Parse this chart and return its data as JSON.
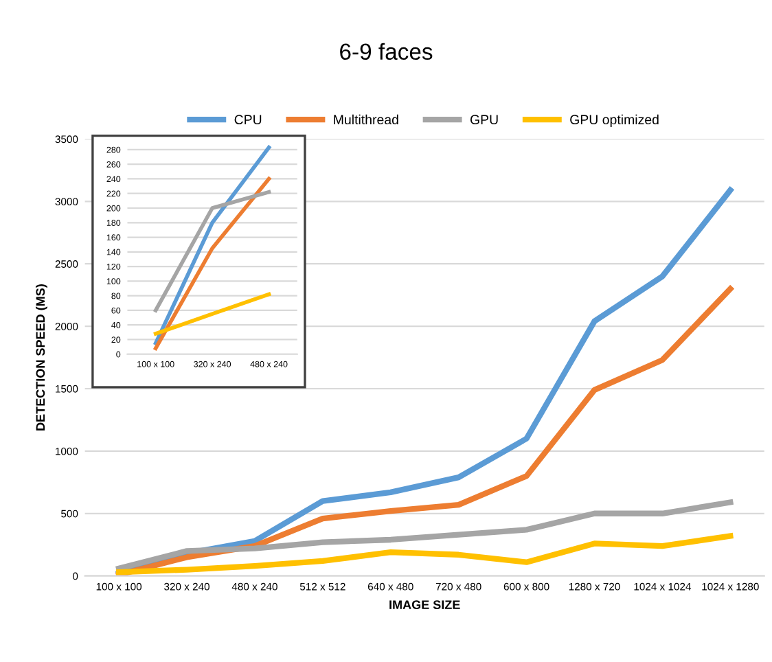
{
  "chart_data": [
    {
      "type": "line",
      "title": "6-9 faces",
      "xlabel": "IMAGE SIZE",
      "ylabel": "DETECTION SPEED (MS)",
      "categories": [
        "100 x 100",
        "320 x 240",
        "480 x 240",
        "512 x 512",
        "640 x 480",
        "720 x 480",
        "600 x 800",
        "1280 x 720",
        "1024 x 1024",
        "1024 x 1280"
      ],
      "series": [
        {
          "name": "CPU",
          "color": "#5b9bd5",
          "values": [
            20,
            180,
            280,
            600,
            670,
            790,
            1100,
            2040,
            2400,
            3090
          ]
        },
        {
          "name": "Multithread",
          "color": "#ed7d31",
          "values": [
            10,
            150,
            240,
            460,
            520,
            570,
            800,
            1490,
            1730,
            2300
          ]
        },
        {
          "name": "GPU",
          "color": "#a5a5a5",
          "values": [
            60,
            200,
            220,
            270,
            290,
            330,
            370,
            500,
            500,
            590
          ]
        },
        {
          "name": "GPU optimized",
          "color": "#ffc000",
          "values": [
            30,
            50,
            80,
            120,
            190,
            170,
            110,
            260,
            240,
            320
          ]
        }
      ],
      "ylim": [
        0,
        3500
      ],
      "yticks": [
        0,
        500,
        1000,
        1500,
        2000,
        2500,
        3000,
        3500
      ],
      "grid": "y",
      "legend": "top"
    },
    {
      "type": "line",
      "categories": [
        "100 x 100",
        "320 x 240",
        "480 x 240"
      ],
      "series": [
        {
          "color": "#5b9bd5",
          "values": [
            15,
            180,
            283
          ]
        },
        {
          "color": "#ed7d31",
          "values": [
            8,
            145,
            240
          ]
        },
        {
          "color": "#a5a5a5",
          "values": [
            60,
            200,
            222
          ]
        },
        {
          "color": "#ffc000",
          "values": [
            28,
            55,
            82
          ]
        }
      ],
      "ylim": [
        0,
        290
      ],
      "yticks": [
        0,
        20,
        40,
        60,
        80,
        100,
        120,
        140,
        160,
        180,
        200,
        220,
        240,
        260,
        280
      ],
      "grid": "y"
    }
  ]
}
